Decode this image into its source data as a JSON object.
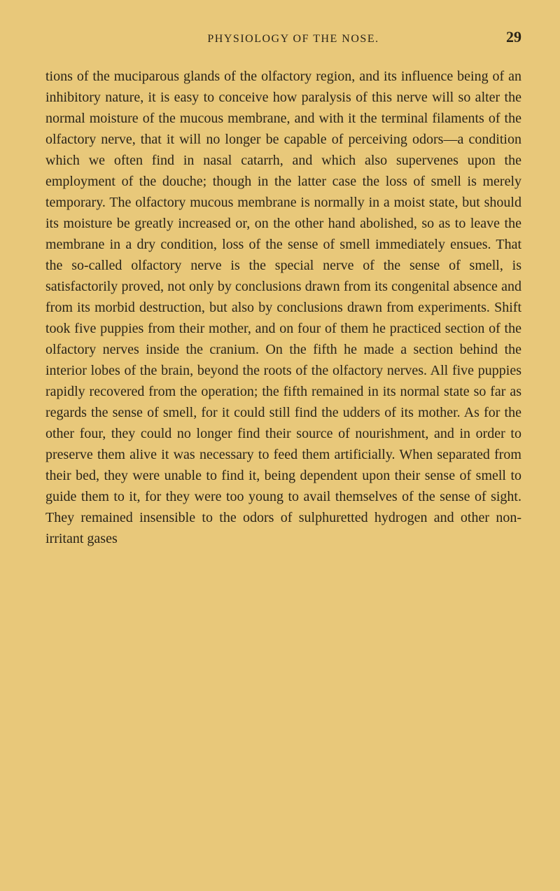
{
  "header": {
    "title": "PHYSIOLOGY OF THE NOSE.",
    "page_number": "29"
  },
  "body": {
    "paragraph": "tions of the muciparous glands of the olfactory region, and its influence being of an inhibitory nature, it is easy to conceive how paralysis of this nerve will so alter the normal moisture of the mucous membrane, and with it the terminal filaments of the olfactory nerve, that it will no longer be capable of perceiving odors—a condition which we often find in nasal catarrh, and which also supervenes upon the employment of the douche; though in the latter case the loss of smell is merely temporary. The olfactory mucous membrane is normally in a moist state, but should its moisture be greatly increased or, on the other hand abolished, so as to leave the membrane in a dry condition, loss of the sense of smell immediately ensues. That the so-called olfactory nerve is the special nerve of the sense of smell, is satisfactorily proved, not only by conclusions drawn from its congenital absence and from its morbid destruction, but also by conclusions drawn from experiments. Shift took five puppies from their mother, and on four of them he practiced section of the olfactory nerves inside the cranium. On the fifth he made a section behind the interior lobes of the brain, beyond the roots of the olfactory nerves. All five puppies rapidly recovered from the operation; the fifth remained in its normal state so far as regards the sense of smell, for it could still find the udders of its mother. As for the other four, they could no longer find their source of nourishment, and in order to preserve them alive it was necessary to feed them artificially. When separated from their bed, they were unable to find it, being dependent upon their sense of smell to guide them to it, for they were too young to avail themselves of the sense of sight. They remained insensible to the odors of sulphuretted hydrogen and other non-irritant gases"
  },
  "colors": {
    "page_background": "#e8c87a",
    "outer_background": "#d4a85c",
    "text_color": "#2a2418"
  },
  "typography": {
    "body_fontsize": 20,
    "header_title_fontsize": 16,
    "page_number_fontsize": 22,
    "line_height": 1.5
  }
}
